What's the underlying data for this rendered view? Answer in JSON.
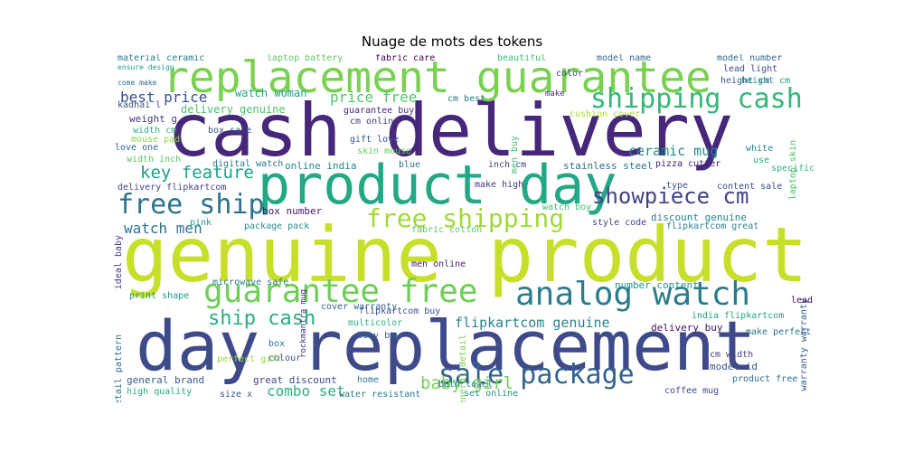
{
  "chart_data": {
    "type": "wordcloud",
    "title": "Nuage de mots des tokens",
    "background": "#ffffff",
    "colormap": "viridis",
    "words": [
      {
        "text": "genuine product",
        "size": 84,
        "color": "#c8df2a"
      },
      {
        "text": "cash delivery",
        "size": 80,
        "color": "#46277a"
      },
      {
        "text": "day replacement",
        "size": 76,
        "color": "#3e4a89"
      },
      {
        "text": "product day",
        "size": 60,
        "color": "#22a884"
      },
      {
        "text": "replacement guarantee",
        "size": 48,
        "color": "#7ad151"
      },
      {
        "text": "analog watch",
        "size": 36,
        "color": "#2b7c8e"
      },
      {
        "text": "guarantee free",
        "size": 36,
        "color": "#6ece58"
      },
      {
        "text": "sale package",
        "size": 30,
        "color": "#33638d"
      },
      {
        "text": "shipping cash",
        "size": 30,
        "color": "#35b779"
      },
      {
        "text": "free ship",
        "size": 30,
        "color": "#2c728e"
      },
      {
        "text": "free shipping",
        "size": 28,
        "color": "#a0da39"
      },
      {
        "text": "showpiece cm",
        "size": 24,
        "color": "#404387"
      },
      {
        "text": "ship cash",
        "size": 22,
        "color": "#29af7f"
      },
      {
        "text": "key feature",
        "size": 19,
        "color": "#1f9e89"
      },
      {
        "text": "baby girl",
        "size": 19,
        "color": "#75d054"
      },
      {
        "text": "combo set",
        "size": 16,
        "color": "#2db27d"
      },
      {
        "text": "flipkartcom genuine",
        "size": 15,
        "color": "#25858e"
      },
      {
        "text": "ceramic mug",
        "size": 15,
        "color": "#228c8d"
      },
      {
        "text": "price free",
        "size": 16,
        "color": "#52c569"
      },
      {
        "text": "best price",
        "size": 16,
        "color": "#3b528b"
      },
      {
        "text": "watch men",
        "size": 16,
        "color": "#2a768e"
      },
      {
        "text": "material ceramic",
        "size": 10,
        "color": "#287d8e"
      },
      {
        "text": "laptop battery",
        "size": 10,
        "color": "#5ec962"
      },
      {
        "text": "fabric care",
        "size": 10,
        "color": "#440154"
      },
      {
        "text": "beautiful",
        "size": 10,
        "color": "#3aba76"
      },
      {
        "text": "model name",
        "size": 10,
        "color": "#31688e"
      },
      {
        "text": "model number",
        "size": 10,
        "color": "#2e6e8e"
      },
      {
        "text": "lead light",
        "size": 10,
        "color": "#3e4c8a"
      },
      {
        "text": "height cm",
        "size": 10,
        "color": "#355f8d"
      },
      {
        "text": "watch woman",
        "size": 12,
        "color": "#1fa187"
      },
      {
        "text": "delivery genuine",
        "size": 12,
        "color": "#4ac16d"
      },
      {
        "text": "guarantee buy",
        "size": 10,
        "color": "#482878"
      },
      {
        "text": "cm online",
        "size": 10,
        "color": "#443a83"
      },
      {
        "text": "cm best",
        "size": 10,
        "color": "#2a788e"
      },
      {
        "text": "color",
        "size": 10,
        "color": "#3d4e8a"
      },
      {
        "text": "make",
        "size": 9,
        "color": "#472c7a"
      },
      {
        "text": "weight g",
        "size": 11,
        "color": "#453781"
      },
      {
        "text": "width cm",
        "size": 10,
        "color": "#2ab07f"
      },
      {
        "text": "box sale",
        "size": 10,
        "color": "#39568c"
      },
      {
        "text": "gift love",
        "size": 10,
        "color": "#3b518b"
      },
      {
        "text": "love one",
        "size": 10,
        "color": "#30698e"
      },
      {
        "text": "mouse pad",
        "size": 10,
        "color": "#8bd646"
      },
      {
        "text": "skin mouse",
        "size": 10,
        "color": "#65cb5e"
      },
      {
        "text": "width inch",
        "size": 10,
        "color": "#5cc863"
      },
      {
        "text": "cushion cover",
        "size": 10,
        "color": "#aadc32"
      },
      {
        "text": "digital watch",
        "size": 10,
        "color": "#2c738e"
      },
      {
        "text": "online india",
        "size": 11,
        "color": "#26828e"
      },
      {
        "text": "blue",
        "size": 10,
        "color": "#2d708e"
      },
      {
        "text": "inch cm",
        "size": 10,
        "color": "#414487"
      },
      {
        "text": "stainless steel",
        "size": 11,
        "color": "#2f6c8e"
      },
      {
        "text": "pizza cutter",
        "size": 10,
        "color": "#482173"
      },
      {
        "text": "white",
        "size": 10,
        "color": "#24878e"
      },
      {
        "text": "specification",
        "size": 10,
        "color": "#31b57b"
      },
      {
        "text": "delivery flipkartcom",
        "size": 10,
        "color": "#404688"
      },
      {
        "text": "make high",
        "size": 10,
        "color": "#46337f"
      },
      {
        "text": "content sale",
        "size": 10,
        "color": "#3f4889"
      },
      {
        "text": "box number",
        "size": 11,
        "color": "#481668"
      },
      {
        "text": "watch boy",
        "size": 10,
        "color": "#40bd72"
      },
      {
        "text": "discount genuine",
        "size": 11,
        "color": "#26818e"
      },
      {
        "text": "pink",
        "size": 10,
        "color": "#1e9b8a"
      },
      {
        "text": "package pack",
        "size": 10,
        "color": "#21908d"
      },
      {
        "text": "fabric cotton",
        "size": 10,
        "color": "#56c667"
      },
      {
        "text": "style code",
        "size": 10,
        "color": "#404588"
      },
      {
        "text": "flipkartcom great",
        "size": 10,
        "color": "#27808e"
      },
      {
        "text": "men online",
        "size": 10,
        "color": "#482475"
      },
      {
        "text": "microwave safe",
        "size": 10,
        "color": "#297a8e"
      },
      {
        "text": "number content",
        "size": 11,
        "color": "#1f968b"
      },
      {
        "text": "print shape",
        "size": 10,
        "color": "#1f958b"
      },
      {
        "text": "cover warranty",
        "size": 10,
        "color": "#34618d"
      },
      {
        "text": "flipkartcom buy",
        "size": 10,
        "color": "#3c4f8a"
      },
      {
        "text": "india flipkartcom",
        "size": 10,
        "color": "#20a386"
      },
      {
        "text": "multicolor",
        "size": 10,
        "color": "#2fb47c"
      },
      {
        "text": "delivery buy",
        "size": 11,
        "color": "#471164"
      },
      {
        "text": "baby boy",
        "size": 10,
        "color": "#33628d"
      },
      {
        "text": "box",
        "size": 10,
        "color": "#2b748e"
      },
      {
        "text": "colour",
        "size": 10,
        "color": "#3b528b"
      },
      {
        "text": "perfect gift",
        "size": 10,
        "color": "#95d840"
      },
      {
        "text": "general brand",
        "size": 11,
        "color": "#375b8d"
      },
      {
        "text": "great discount",
        "size": 11,
        "color": "#3f4788"
      },
      {
        "text": "home",
        "size": 10,
        "color": "#297b8e"
      },
      {
        "text": "bath towel",
        "size": 10,
        "color": "#277f8e"
      },
      {
        "text": "cm width",
        "size": 10,
        "color": "#424086"
      },
      {
        "text": "model id",
        "size": 11,
        "color": "#3a548c"
      },
      {
        "text": "product free",
        "size": 10,
        "color": "#2e6e8e"
      },
      {
        "text": "coffee mug",
        "size": 10,
        "color": "#3f4889"
      },
      {
        "text": "high quality",
        "size": 10,
        "color": "#25ab82"
      },
      {
        "text": "water resistant",
        "size": 10,
        "color": "#2a788e"
      },
      {
        "text": "set online",
        "size": 10,
        "color": "#1f978b"
      },
      {
        "text": "size x",
        "size": 10,
        "color": "#3a538b"
      },
      {
        "text": "make perfect",
        "size": 10,
        "color": "#2c718e"
      },
      {
        "text": "ideal baby",
        "size": 10,
        "color": "#443983"
      },
      {
        "text": "men buy",
        "size": 10,
        "color": "#3fbc73"
      },
      {
        "text": "laptop skin",
        "size": 10,
        "color": "#4cc26c"
      },
      {
        "text": "warranty warranty",
        "size": 10,
        "color": "#34608d"
      },
      {
        "text": "detail pattern",
        "size": 10,
        "color": "#2e6d8e"
      },
      {
        "text": "general detail",
        "size": 10,
        "color": "#73d056"
      },
      {
        "text": "rockmantra mug",
        "size": 9,
        "color": "#472f7d"
      },
      {
        "text": "height cm",
        "size": 10,
        "color": "#1e9c89"
      },
      {
        "text": "lead",
        "size": 10,
        "color": "#440154"
      },
      {
        "text": "use",
        "size": 10,
        "color": "#2db27d"
      },
      {
        "text": "type",
        "size": 10,
        "color": "#3b528b"
      },
      {
        "text": "kadhai l",
        "size": 10,
        "color": "#3b528b"
      },
      {
        "text": "ensure design",
        "size": 8,
        "color": "#1fa188"
      },
      {
        "text": "come make",
        "size": 8,
        "color": "#2f6b8e"
      }
    ]
  }
}
